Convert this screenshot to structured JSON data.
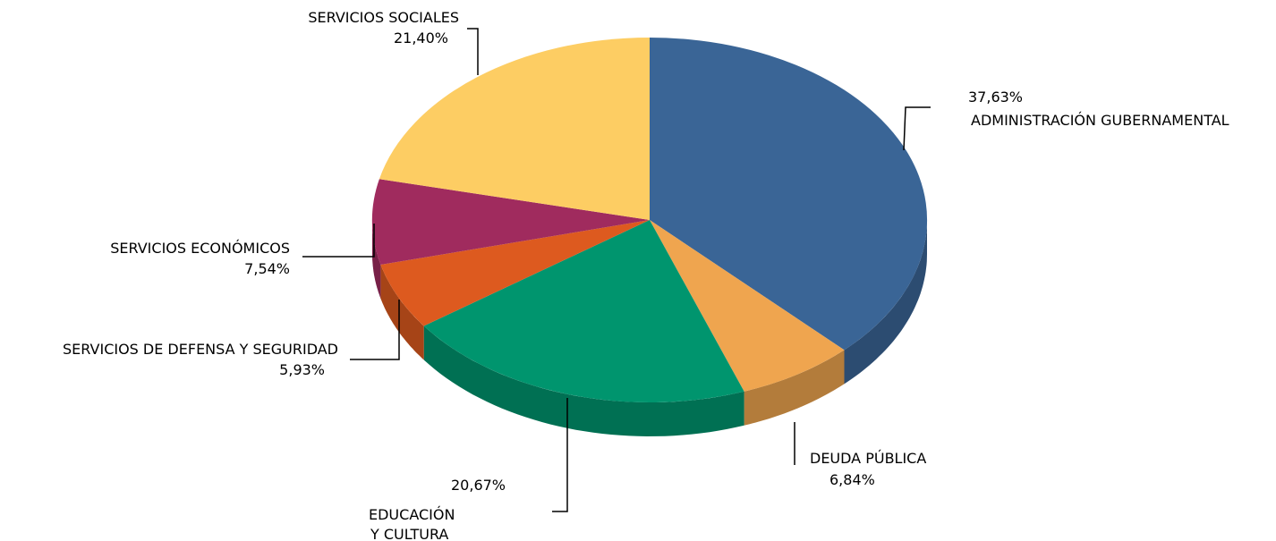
{
  "chart_data": {
    "type": "pie",
    "style": "3d",
    "title": "",
    "slices": [
      {
        "name": "ADMINISTRACIÓN GUBERNAMENTAL",
        "label": "37,63%",
        "value": 37.63,
        "color": "#3A6596"
      },
      {
        "name": "DEUDA PÚBLICA",
        "label": "6,84%",
        "value": 6.84,
        "color": "#EFA54F"
      },
      {
        "name_lines": [
          "EDUCACIÓN",
          "Y CULTURA"
        ],
        "label": "20,67%",
        "value": 20.67,
        "color": "#00956E"
      },
      {
        "name": "SERVICIOS DE DEFENSA Y SEGURIDAD",
        "label": "5,93%",
        "value": 5.93,
        "color": "#DD5A1F"
      },
      {
        "name": "SERVICIOS ECONÓMICOS",
        "label": "7,54%",
        "value": 7.54,
        "color": "#A02B5E"
      },
      {
        "name": "SERVICIOS SOCIALES",
        "label": "21,40%",
        "value": 21.4,
        "color": "#FDCD63"
      }
    ]
  }
}
